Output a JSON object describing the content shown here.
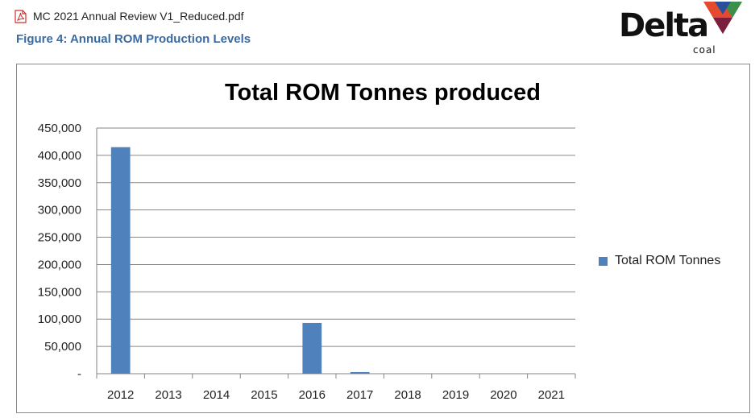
{
  "file": {
    "name": "MC 2021 Annual Review V1_Reduced.pdf",
    "icon": "pdf-icon"
  },
  "figure": {
    "caption": "Figure 4: Annual ROM Production Levels"
  },
  "logo": {
    "brand": "Delta",
    "sub": "coal"
  },
  "colors": {
    "bar": "#4f81bd",
    "caption": "#3b6aa0",
    "grid": "#868686"
  },
  "chart_data": {
    "type": "bar",
    "title": "Total ROM Tonnes produced",
    "categories": [
      "2012",
      "2013",
      "2014",
      "2015",
      "2016",
      "2017",
      "2018",
      "2019",
      "2020",
      "2021"
    ],
    "series": [
      {
        "name": "Total ROM Tonnes",
        "values": [
          415000,
          0,
          0,
          0,
          93000,
          3000,
          0,
          0,
          0,
          0
        ]
      }
    ],
    "ylim": [
      0,
      450000
    ],
    "yticks": [
      0,
      50000,
      100000,
      150000,
      200000,
      250000,
      300000,
      350000,
      400000,
      450000
    ],
    "ytick_labels": [
      "-",
      "50,000",
      "100,000",
      "150,000",
      "200,000",
      "250,000",
      "300,000",
      "350,000",
      "400,000",
      "450,000"
    ],
    "grid": true,
    "legend_position": "right"
  }
}
